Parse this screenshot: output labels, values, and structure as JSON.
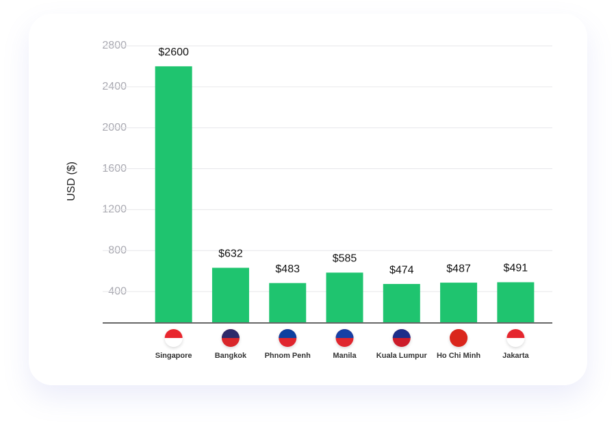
{
  "chart_data": {
    "type": "bar",
    "y_label": "USD ($)",
    "categories": [
      "Singapore",
      "Bangkok",
      "Phnom Penh",
      "Manila",
      "Kuala Lumpur",
      "Ho Chi Minh",
      "Jakarta"
    ],
    "values": [
      2600,
      632,
      483,
      585,
      474,
      487,
      491
    ],
    "value_labels": [
      "$2600",
      "$632",
      "$483",
      "$585",
      "$474",
      "$487",
      "$491"
    ],
    "color": "#1fc46f",
    "ylim": [
      100,
      2800
    ],
    "yticks": [
      400,
      800,
      1200,
      1600,
      2000,
      2400,
      2800
    ],
    "grid": true
  }
}
